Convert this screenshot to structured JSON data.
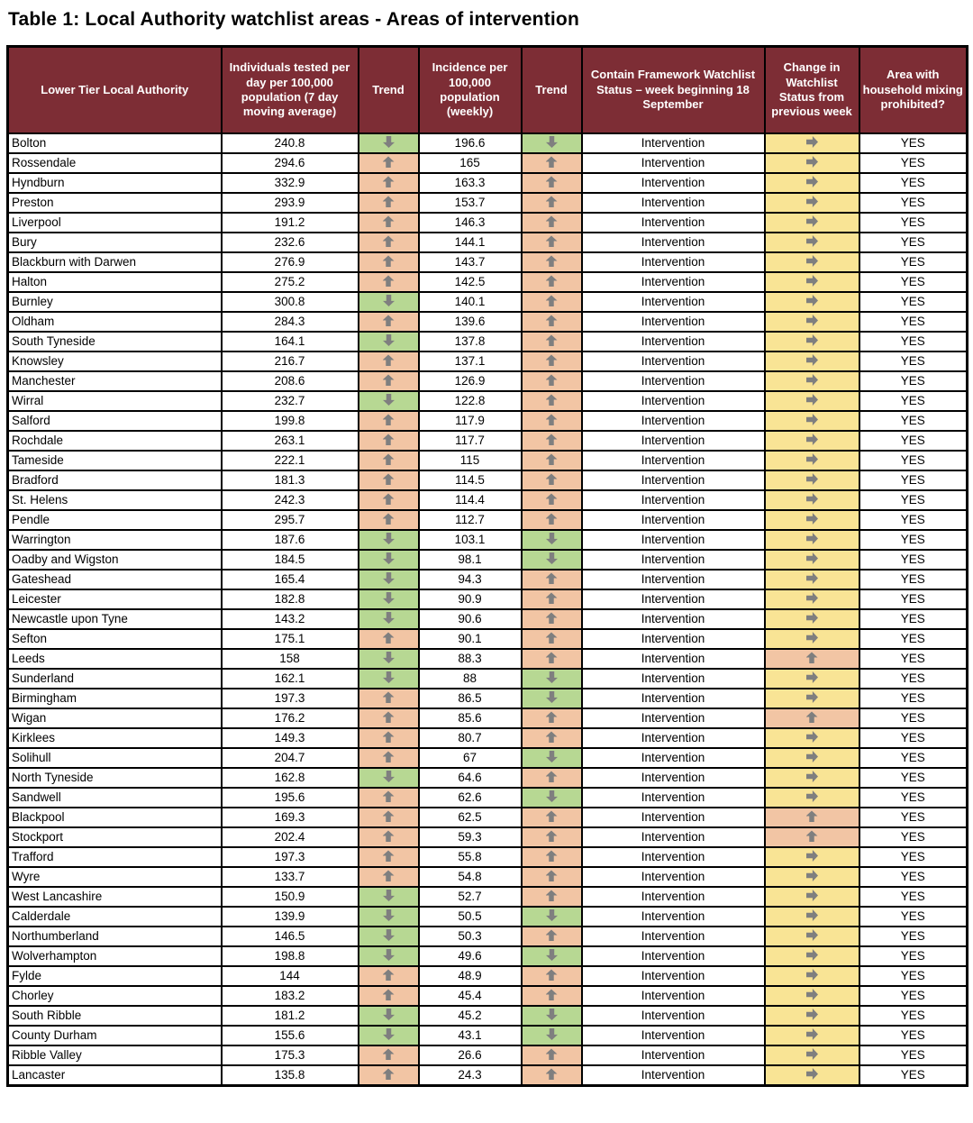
{
  "title": "Table 1: Local Authority watchlist areas - Areas of intervention",
  "colors": {
    "header_bg": "#7d2d35",
    "trend_up_bg": "#f2c5a4",
    "trend_down_bg": "#b7d893",
    "change_same_bg": "#f9e495",
    "arrow_color": "#7f7f7f",
    "border_color": "#000000"
  },
  "icons": {
    "up": "block-arrow-up",
    "down": "block-arrow-down",
    "same": "block-arrow-right"
  },
  "table": {
    "columns": [
      "Lower Tier Local Authority",
      "Individuals tested per day per 100,000 population (7 day moving average)",
      "Trend",
      "Incidence per 100,000 population (weekly)",
      "Trend",
      "Contain Framework Watchlist Status – week beginning 18 September",
      "Change in Watchlist Status from previous week",
      "Area with household mixing prohibited?"
    ],
    "rows": [
      {
        "authority": "Bolton",
        "tested": "240.8",
        "tested_trend": "down",
        "incidence": "196.6",
        "incidence_trend": "down",
        "status": "Intervention",
        "change": "same",
        "mixing": "YES"
      },
      {
        "authority": "Rossendale",
        "tested": "294.6",
        "tested_trend": "up",
        "incidence": "165",
        "incidence_trend": "up",
        "status": "Intervention",
        "change": "same",
        "mixing": "YES"
      },
      {
        "authority": "Hyndburn",
        "tested": "332.9",
        "tested_trend": "up",
        "incidence": "163.3",
        "incidence_trend": "up",
        "status": "Intervention",
        "change": "same",
        "mixing": "YES"
      },
      {
        "authority": "Preston",
        "tested": "293.9",
        "tested_trend": "up",
        "incidence": "153.7",
        "incidence_trend": "up",
        "status": "Intervention",
        "change": "same",
        "mixing": "YES"
      },
      {
        "authority": "Liverpool",
        "tested": "191.2",
        "tested_trend": "up",
        "incidence": "146.3",
        "incidence_trend": "up",
        "status": "Intervention",
        "change": "same",
        "mixing": "YES"
      },
      {
        "authority": "Bury",
        "tested": "232.6",
        "tested_trend": "up",
        "incidence": "144.1",
        "incidence_trend": "up",
        "status": "Intervention",
        "change": "same",
        "mixing": "YES"
      },
      {
        "authority": "Blackburn with Darwen",
        "tested": "276.9",
        "tested_trend": "up",
        "incidence": "143.7",
        "incidence_trend": "up",
        "status": "Intervention",
        "change": "same",
        "mixing": "YES"
      },
      {
        "authority": "Halton",
        "tested": "275.2",
        "tested_trend": "up",
        "incidence": "142.5",
        "incidence_trend": "up",
        "status": "Intervention",
        "change": "same",
        "mixing": "YES"
      },
      {
        "authority": "Burnley",
        "tested": "300.8",
        "tested_trend": "down",
        "incidence": "140.1",
        "incidence_trend": "up",
        "status": "Intervention",
        "change": "same",
        "mixing": "YES"
      },
      {
        "authority": "Oldham",
        "tested": "284.3",
        "tested_trend": "up",
        "incidence": "139.6",
        "incidence_trend": "up",
        "status": "Intervention",
        "change": "same",
        "mixing": "YES"
      },
      {
        "authority": "South Tyneside",
        "tested": "164.1",
        "tested_trend": "down",
        "incidence": "137.8",
        "incidence_trend": "up",
        "status": "Intervention",
        "change": "same",
        "mixing": "YES"
      },
      {
        "authority": "Knowsley",
        "tested": "216.7",
        "tested_trend": "up",
        "incidence": "137.1",
        "incidence_trend": "up",
        "status": "Intervention",
        "change": "same",
        "mixing": "YES"
      },
      {
        "authority": "Manchester",
        "tested": "208.6",
        "tested_trend": "up",
        "incidence": "126.9",
        "incidence_trend": "up",
        "status": "Intervention",
        "change": "same",
        "mixing": "YES"
      },
      {
        "authority": "Wirral",
        "tested": "232.7",
        "tested_trend": "down",
        "incidence": "122.8",
        "incidence_trend": "up",
        "status": "Intervention",
        "change": "same",
        "mixing": "YES"
      },
      {
        "authority": "Salford",
        "tested": "199.8",
        "tested_trend": "up",
        "incidence": "117.9",
        "incidence_trend": "up",
        "status": "Intervention",
        "change": "same",
        "mixing": "YES"
      },
      {
        "authority": "Rochdale",
        "tested": "263.1",
        "tested_trend": "up",
        "incidence": "117.7",
        "incidence_trend": "up",
        "status": "Intervention",
        "change": "same",
        "mixing": "YES"
      },
      {
        "authority": "Tameside",
        "tested": "222.1",
        "tested_trend": "up",
        "incidence": "115",
        "incidence_trend": "up",
        "status": "Intervention",
        "change": "same",
        "mixing": "YES"
      },
      {
        "authority": "Bradford",
        "tested": "181.3",
        "tested_trend": "up",
        "incidence": "114.5",
        "incidence_trend": "up",
        "status": "Intervention",
        "change": "same",
        "mixing": "YES"
      },
      {
        "authority": "St. Helens",
        "tested": "242.3",
        "tested_trend": "up",
        "incidence": "114.4",
        "incidence_trend": "up",
        "status": "Intervention",
        "change": "same",
        "mixing": "YES"
      },
      {
        "authority": "Pendle",
        "tested": "295.7",
        "tested_trend": "up",
        "incidence": "112.7",
        "incidence_trend": "up",
        "status": "Intervention",
        "change": "same",
        "mixing": "YES"
      },
      {
        "authority": "Warrington",
        "tested": "187.6",
        "tested_trend": "down",
        "incidence": "103.1",
        "incidence_trend": "down",
        "status": "Intervention",
        "change": "same",
        "mixing": "YES"
      },
      {
        "authority": "Oadby and Wigston",
        "tested": "184.5",
        "tested_trend": "down",
        "incidence": "98.1",
        "incidence_trend": "down",
        "status": "Intervention",
        "change": "same",
        "mixing": "YES"
      },
      {
        "authority": "Gateshead",
        "tested": "165.4",
        "tested_trend": "down",
        "incidence": "94.3",
        "incidence_trend": "up",
        "status": "Intervention",
        "change": "same",
        "mixing": "YES"
      },
      {
        "authority": "Leicester",
        "tested": "182.8",
        "tested_trend": "down",
        "incidence": "90.9",
        "incidence_trend": "up",
        "status": "Intervention",
        "change": "same",
        "mixing": "YES"
      },
      {
        "authority": "Newcastle upon Tyne",
        "tested": "143.2",
        "tested_trend": "down",
        "incidence": "90.6",
        "incidence_trend": "up",
        "status": "Intervention",
        "change": "same",
        "mixing": "YES"
      },
      {
        "authority": "Sefton",
        "tested": "175.1",
        "tested_trend": "up",
        "incidence": "90.1",
        "incidence_trend": "up",
        "status": "Intervention",
        "change": "same",
        "mixing": "YES"
      },
      {
        "authority": "Leeds",
        "tested": "158",
        "tested_trend": "down",
        "incidence": "88.3",
        "incidence_trend": "up",
        "status": "Intervention",
        "change": "up",
        "mixing": "YES"
      },
      {
        "authority": "Sunderland",
        "tested": "162.1",
        "tested_trend": "down",
        "incidence": "88",
        "incidence_trend": "down",
        "status": "Intervention",
        "change": "same",
        "mixing": "YES"
      },
      {
        "authority": "Birmingham",
        "tested": "197.3",
        "tested_trend": "up",
        "incidence": "86.5",
        "incidence_trend": "down",
        "status": "Intervention",
        "change": "same",
        "mixing": "YES"
      },
      {
        "authority": "Wigan",
        "tested": "176.2",
        "tested_trend": "up",
        "incidence": "85.6",
        "incidence_trend": "up",
        "status": "Intervention",
        "change": "up",
        "mixing": "YES"
      },
      {
        "authority": "Kirklees",
        "tested": "149.3",
        "tested_trend": "up",
        "incidence": "80.7",
        "incidence_trend": "up",
        "status": "Intervention",
        "change": "same",
        "mixing": "YES"
      },
      {
        "authority": "Solihull",
        "tested": "204.7",
        "tested_trend": "up",
        "incidence": "67",
        "incidence_trend": "down",
        "status": "Intervention",
        "change": "same",
        "mixing": "YES"
      },
      {
        "authority": "North Tyneside",
        "tested": "162.8",
        "tested_trend": "down",
        "incidence": "64.6",
        "incidence_trend": "up",
        "status": "Intervention",
        "change": "same",
        "mixing": "YES"
      },
      {
        "authority": "Sandwell",
        "tested": "195.6",
        "tested_trend": "up",
        "incidence": "62.6",
        "incidence_trend": "down",
        "status": "Intervention",
        "change": "same",
        "mixing": "YES"
      },
      {
        "authority": "Blackpool",
        "tested": "169.3",
        "tested_trend": "up",
        "incidence": "62.5",
        "incidence_trend": "up",
        "status": "Intervention",
        "change": "up",
        "mixing": "YES"
      },
      {
        "authority": "Stockport",
        "tested": "202.4",
        "tested_trend": "up",
        "incidence": "59.3",
        "incidence_trend": "up",
        "status": "Intervention",
        "change": "up",
        "mixing": "YES"
      },
      {
        "authority": "Trafford",
        "tested": "197.3",
        "tested_trend": "up",
        "incidence": "55.8",
        "incidence_trend": "up",
        "status": "Intervention",
        "change": "same",
        "mixing": "YES"
      },
      {
        "authority": "Wyre",
        "tested": "133.7",
        "tested_trend": "up",
        "incidence": "54.8",
        "incidence_trend": "up",
        "status": "Intervention",
        "change": "same",
        "mixing": "YES"
      },
      {
        "authority": "West Lancashire",
        "tested": "150.9",
        "tested_trend": "down",
        "incidence": "52.7",
        "incidence_trend": "up",
        "status": "Intervention",
        "change": "same",
        "mixing": "YES"
      },
      {
        "authority": "Calderdale",
        "tested": "139.9",
        "tested_trend": "down",
        "incidence": "50.5",
        "incidence_trend": "down",
        "status": "Intervention",
        "change": "same",
        "mixing": "YES"
      },
      {
        "authority": "Northumberland",
        "tested": "146.5",
        "tested_trend": "down",
        "incidence": "50.3",
        "incidence_trend": "up",
        "status": "Intervention",
        "change": "same",
        "mixing": "YES"
      },
      {
        "authority": "Wolverhampton",
        "tested": "198.8",
        "tested_trend": "down",
        "incidence": "49.6",
        "incidence_trend": "down",
        "status": "Intervention",
        "change": "same",
        "mixing": "YES"
      },
      {
        "authority": "Fylde",
        "tested": "144",
        "tested_trend": "up",
        "incidence": "48.9",
        "incidence_trend": "up",
        "status": "Intervention",
        "change": "same",
        "mixing": "YES"
      },
      {
        "authority": "Chorley",
        "tested": "183.2",
        "tested_trend": "up",
        "incidence": "45.4",
        "incidence_trend": "up",
        "status": "Intervention",
        "change": "same",
        "mixing": "YES"
      },
      {
        "authority": "South Ribble",
        "tested": "181.2",
        "tested_trend": "down",
        "incidence": "45.2",
        "incidence_trend": "down",
        "status": "Intervention",
        "change": "same",
        "mixing": "YES"
      },
      {
        "authority": "County Durham",
        "tested": "155.6",
        "tested_trend": "down",
        "incidence": "43.1",
        "incidence_trend": "down",
        "status": "Intervention",
        "change": "same",
        "mixing": "YES"
      },
      {
        "authority": "Ribble Valley",
        "tested": "175.3",
        "tested_trend": "up",
        "incidence": "26.6",
        "incidence_trend": "up",
        "status": "Intervention",
        "change": "same",
        "mixing": "YES"
      },
      {
        "authority": "Lancaster",
        "tested": "135.8",
        "tested_trend": "up",
        "incidence": "24.3",
        "incidence_trend": "up",
        "status": "Intervention",
        "change": "same",
        "mixing": "YES"
      }
    ]
  }
}
